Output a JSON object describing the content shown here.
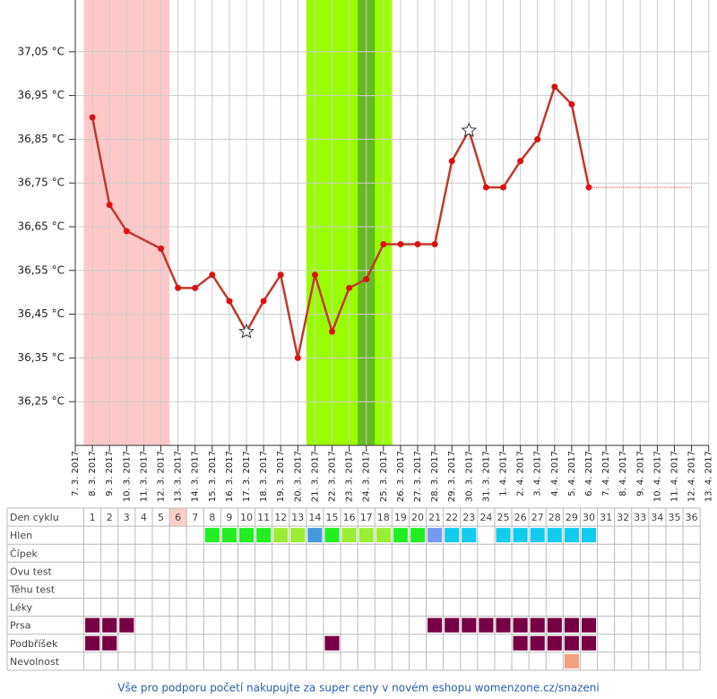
{
  "chart_data": {
    "type": "line",
    "categories": [
      "7. 3. 2017",
      "8. 3. 2017",
      "9. 3. 2017",
      "10. 3. 2017",
      "11. 3. 2017",
      "12. 3. 2017",
      "13. 3. 2017",
      "14. 3. 2017",
      "15. 3. 2017",
      "16. 3. 2017",
      "17. 3. 2017",
      "18. 3. 2017",
      "19. 3. 2017",
      "20. 3. 2017",
      "21. 3. 2017",
      "22. 3. 2017",
      "23. 3. 2017",
      "24. 3. 2017",
      "25. 3. 2017",
      "26. 3. 2017",
      "27. 3. 2017",
      "28. 3. 2017",
      "29. 3. 2017",
      "30. 3. 2017",
      "31. 3. 2017",
      "1. 4. 2017",
      "2. 4. 2017",
      "3. 4. 2017",
      "4. 4. 2017",
      "5. 4. 2017",
      "6. 4. 2017",
      "7. 4. 2017",
      "8. 4. 2017",
      "9. 4. 2017",
      "10. 4. 2017",
      "11. 4. 2017",
      "12. 4. 2017",
      "13. 4. 2017"
    ],
    "series": [
      {
        "color": "#c0392b",
        "width": 2.5,
        "connect_gaps": true,
        "marker_color": "#dd1111",
        "values": [
          null,
          36.9,
          36.7,
          36.64,
          null,
          36.6,
          36.51,
          36.51,
          36.54,
          36.48,
          36.41,
          36.48,
          36.54,
          36.35,
          36.54,
          36.41,
          36.51,
          36.53,
          36.61,
          36.61,
          36.61,
          36.61,
          36.8,
          36.87,
          36.74,
          36.74,
          36.8,
          36.85,
          36.97,
          36.93,
          36.74,
          null,
          null,
          null,
          null,
          null,
          null,
          null
        ],
        "markers": [
          null,
          "circle",
          "circle",
          "circle",
          null,
          "circle",
          "circle",
          "circle",
          "circle",
          "circle",
          "star",
          "circle",
          "circle",
          "circle",
          "circle",
          "circle",
          "circle",
          "circle",
          "circle",
          "circle",
          "circle",
          "circle",
          "circle",
          "star",
          "circle",
          "circle",
          "circle",
          "circle",
          "circle",
          "circle",
          "circle",
          null,
          null,
          null,
          null,
          null,
          null,
          null
        ]
      },
      {
        "color": "#e04040",
        "width": 1,
        "dash": "1,1",
        "connect_gaps": true,
        "values": [
          null,
          null,
          null,
          null,
          null,
          null,
          null,
          null,
          null,
          null,
          null,
          null,
          null,
          null,
          null,
          null,
          null,
          null,
          null,
          null,
          null,
          null,
          null,
          null,
          null,
          null,
          null,
          null,
          null,
          null,
          36.74,
          null,
          null,
          null,
          null,
          null,
          36.74,
          null
        ]
      }
    ],
    "ylim": [
      36.15,
      37.15
    ],
    "yticks": [
      {
        "value": 36.25,
        "label": "36,25 °C"
      },
      {
        "value": 36.35,
        "label": "36,35 °C"
      },
      {
        "value": 36.45,
        "label": "36,45 °C"
      },
      {
        "value": 36.55,
        "label": "36,55 °C"
      },
      {
        "value": 36.65,
        "label": "36,65 °C"
      },
      {
        "value": 36.75,
        "label": "36,75 °C"
      },
      {
        "value": 36.85,
        "label": "36,85 °C"
      },
      {
        "value": 36.95,
        "label": "36,95 °C"
      },
      {
        "value": 37.05,
        "label": "37,05 °C"
      }
    ],
    "grid": true,
    "bands": [
      {
        "from": 1,
        "to": 5,
        "color": "#ffc8c8"
      },
      {
        "from": 14,
        "to": 18,
        "color": "#99ff00"
      },
      {
        "from": 17,
        "to": 17,
        "color": "#66bb22"
      }
    ]
  },
  "cycle_table": {
    "rows": [
      {
        "label": "Den cyklu",
        "days": [
          1,
          2,
          3,
          4,
          5,
          6,
          7,
          8,
          9,
          10,
          11,
          12,
          13,
          14,
          15,
          16,
          17,
          18,
          19,
          20,
          21,
          22,
          23,
          24,
          25,
          26,
          27,
          28,
          29,
          30,
          31,
          32,
          33,
          34,
          35,
          36
        ],
        "highlighted_days": [
          6
        ],
        "highlight_color": "#f8d0c8"
      },
      {
        "label": "Hlen",
        "cells": [
          null,
          null,
          null,
          null,
          null,
          null,
          null,
          "#22ee22",
          "#22ee22",
          "#22ee22",
          "#22ee22",
          "#99ee33",
          "#99ee33",
          "#4499dd",
          "#22ee22",
          "#99ee33",
          "#99ee33",
          "#99ee33",
          "#22ee22",
          "#22ee22",
          "#7799ee",
          "#11ccee",
          "#11ccee",
          null,
          "#11ccee",
          "#11ccee",
          "#11ccee",
          "#11ccee",
          "#11ccee",
          "#11ccee",
          null,
          null,
          null,
          null,
          null,
          null
        ]
      },
      {
        "label": "Čípek",
        "cells": []
      },
      {
        "label": "Ovu test",
        "cells": []
      },
      {
        "label": "Těhu test",
        "cells": []
      },
      {
        "label": "Léky",
        "cells": []
      },
      {
        "label": "Prsa",
        "cells": [
          "#770044",
          "#770044",
          "#770044",
          null,
          null,
          null,
          null,
          null,
          null,
          null,
          null,
          null,
          null,
          null,
          null,
          null,
          null,
          null,
          null,
          null,
          "#770044",
          "#770044",
          "#770044",
          "#770044",
          "#770044",
          "#770044",
          "#770044",
          "#770044",
          "#770044",
          "#770044",
          null,
          null,
          null,
          null,
          null,
          null
        ]
      },
      {
        "label": "Podbříšek",
        "cells": [
          "#770044",
          "#770044",
          null,
          null,
          null,
          null,
          null,
          null,
          null,
          null,
          null,
          null,
          null,
          null,
          "#770044",
          null,
          null,
          null,
          null,
          null,
          null,
          null,
          null,
          null,
          null,
          "#770044",
          "#770044",
          "#770044",
          "#770044",
          "#770044",
          null,
          null,
          null,
          null,
          null,
          null
        ]
      },
      {
        "label": "Nevolnost",
        "cells": [
          null,
          null,
          null,
          null,
          null,
          null,
          null,
          null,
          null,
          null,
          null,
          null,
          null,
          null,
          null,
          null,
          null,
          null,
          null,
          null,
          null,
          null,
          null,
          null,
          null,
          null,
          null,
          null,
          "#f4a080",
          null,
          null,
          null,
          null,
          null,
          null,
          null
        ]
      }
    ]
  },
  "footer": {
    "link": "Vše pro podporu početí nakupujte za super ceny v novém eshopu womenzone.cz/snazeni"
  }
}
